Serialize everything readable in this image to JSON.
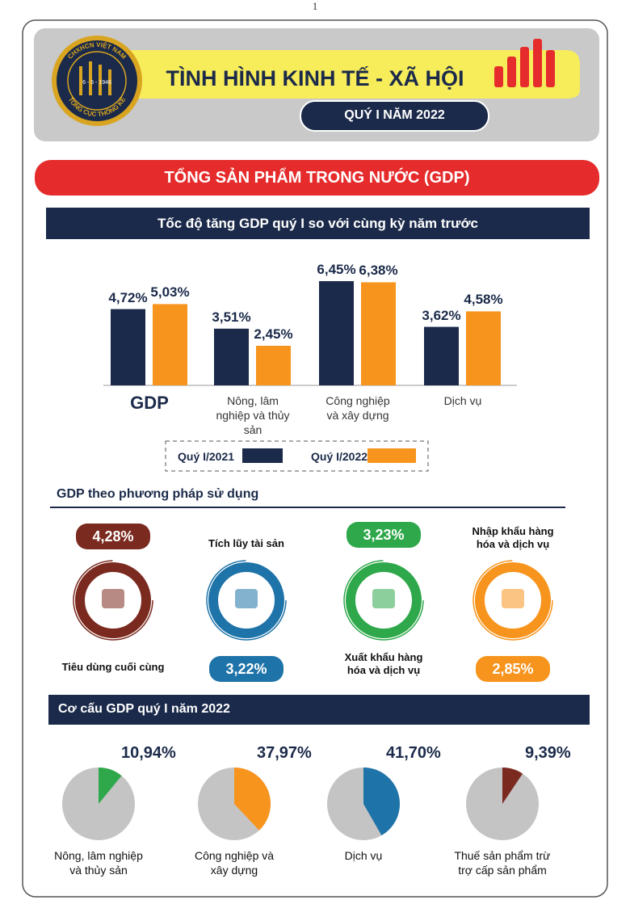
{
  "page_number": "1",
  "header": {
    "logo": {
      "top": "CHXHCN VIỆT NAM",
      "date": "6 - 5 - 1946",
      "bottom": "TỔNG CỤC THỐNG KÊ"
    },
    "title": "TÌNH HÌNH KINH TẾ - XÃ HỘI",
    "period": "QUÝ I NĂM 2022"
  },
  "section_title": "TỔNG SẢN PHẨM TRONG NƯỚC (GDP)",
  "chart_data": [
    {
      "type": "bar",
      "title": "Tốc độ tăng GDP quý I so với cùng kỳ năm trước",
      "categories": [
        "GDP",
        "Nông, lâm nghiệp và thủy sản",
        "Công nghiệp và xây dựng",
        "Dịch vụ"
      ],
      "series": [
        {
          "name": "Quý I/2021",
          "color": "#1b2a4a",
          "values": [
            4.72,
            3.51,
            6.45,
            3.62
          ],
          "value_labels": [
            "4,72%",
            "3,51%",
            "6,45%",
            "3,62%"
          ]
        },
        {
          "name": "Quý I/2022",
          "color": "#f7941d",
          "values": [
            5.03,
            2.45,
            6.38,
            4.58
          ],
          "value_labels": [
            "5,03%",
            "2,45%",
            "6,38%",
            "4,58%"
          ]
        }
      ]
    },
    {
      "type": "pie",
      "title": "Cơ cấu GDP quý I năm 2022",
      "categories": [
        "Nông, lâm nghiệp và thủy sản",
        "Công nghiệp và xây dựng",
        "Dịch vụ",
        "Thuế sản phẩm trừ trợ cấp sản phẩm"
      ],
      "values": [
        10.94,
        37.97,
        41.7,
        9.39
      ],
      "value_labels": [
        "10,94%",
        "37,97%",
        "41,70%",
        "9,39%"
      ],
      "colors": [
        "#2ea84a",
        "#f7941d",
        "#1e73a8",
        "#7b2a1f"
      ]
    }
  ],
  "gdp_by_use": {
    "title": "GDP theo phương pháp sử dụng",
    "items": [
      {
        "label": "Tiêu dùng cuối cùng",
        "value": 4.28,
        "value_label": "4,28%",
        "color": "#7b2a1f"
      },
      {
        "label": "Tích lũy tài sản",
        "value": 3.22,
        "value_label": "3,22%",
        "color": "#1e73a8"
      },
      {
        "label": "Xuất khẩu hàng hóa và dịch vụ",
        "value": 3.23,
        "value_label": "3,23%",
        "color": "#2ea84a"
      },
      {
        "label": "Nhập khẩu hàng hóa và dịch vụ",
        "value": 2.85,
        "value_label": "2,85%",
        "color": "#f7941d"
      }
    ]
  }
}
